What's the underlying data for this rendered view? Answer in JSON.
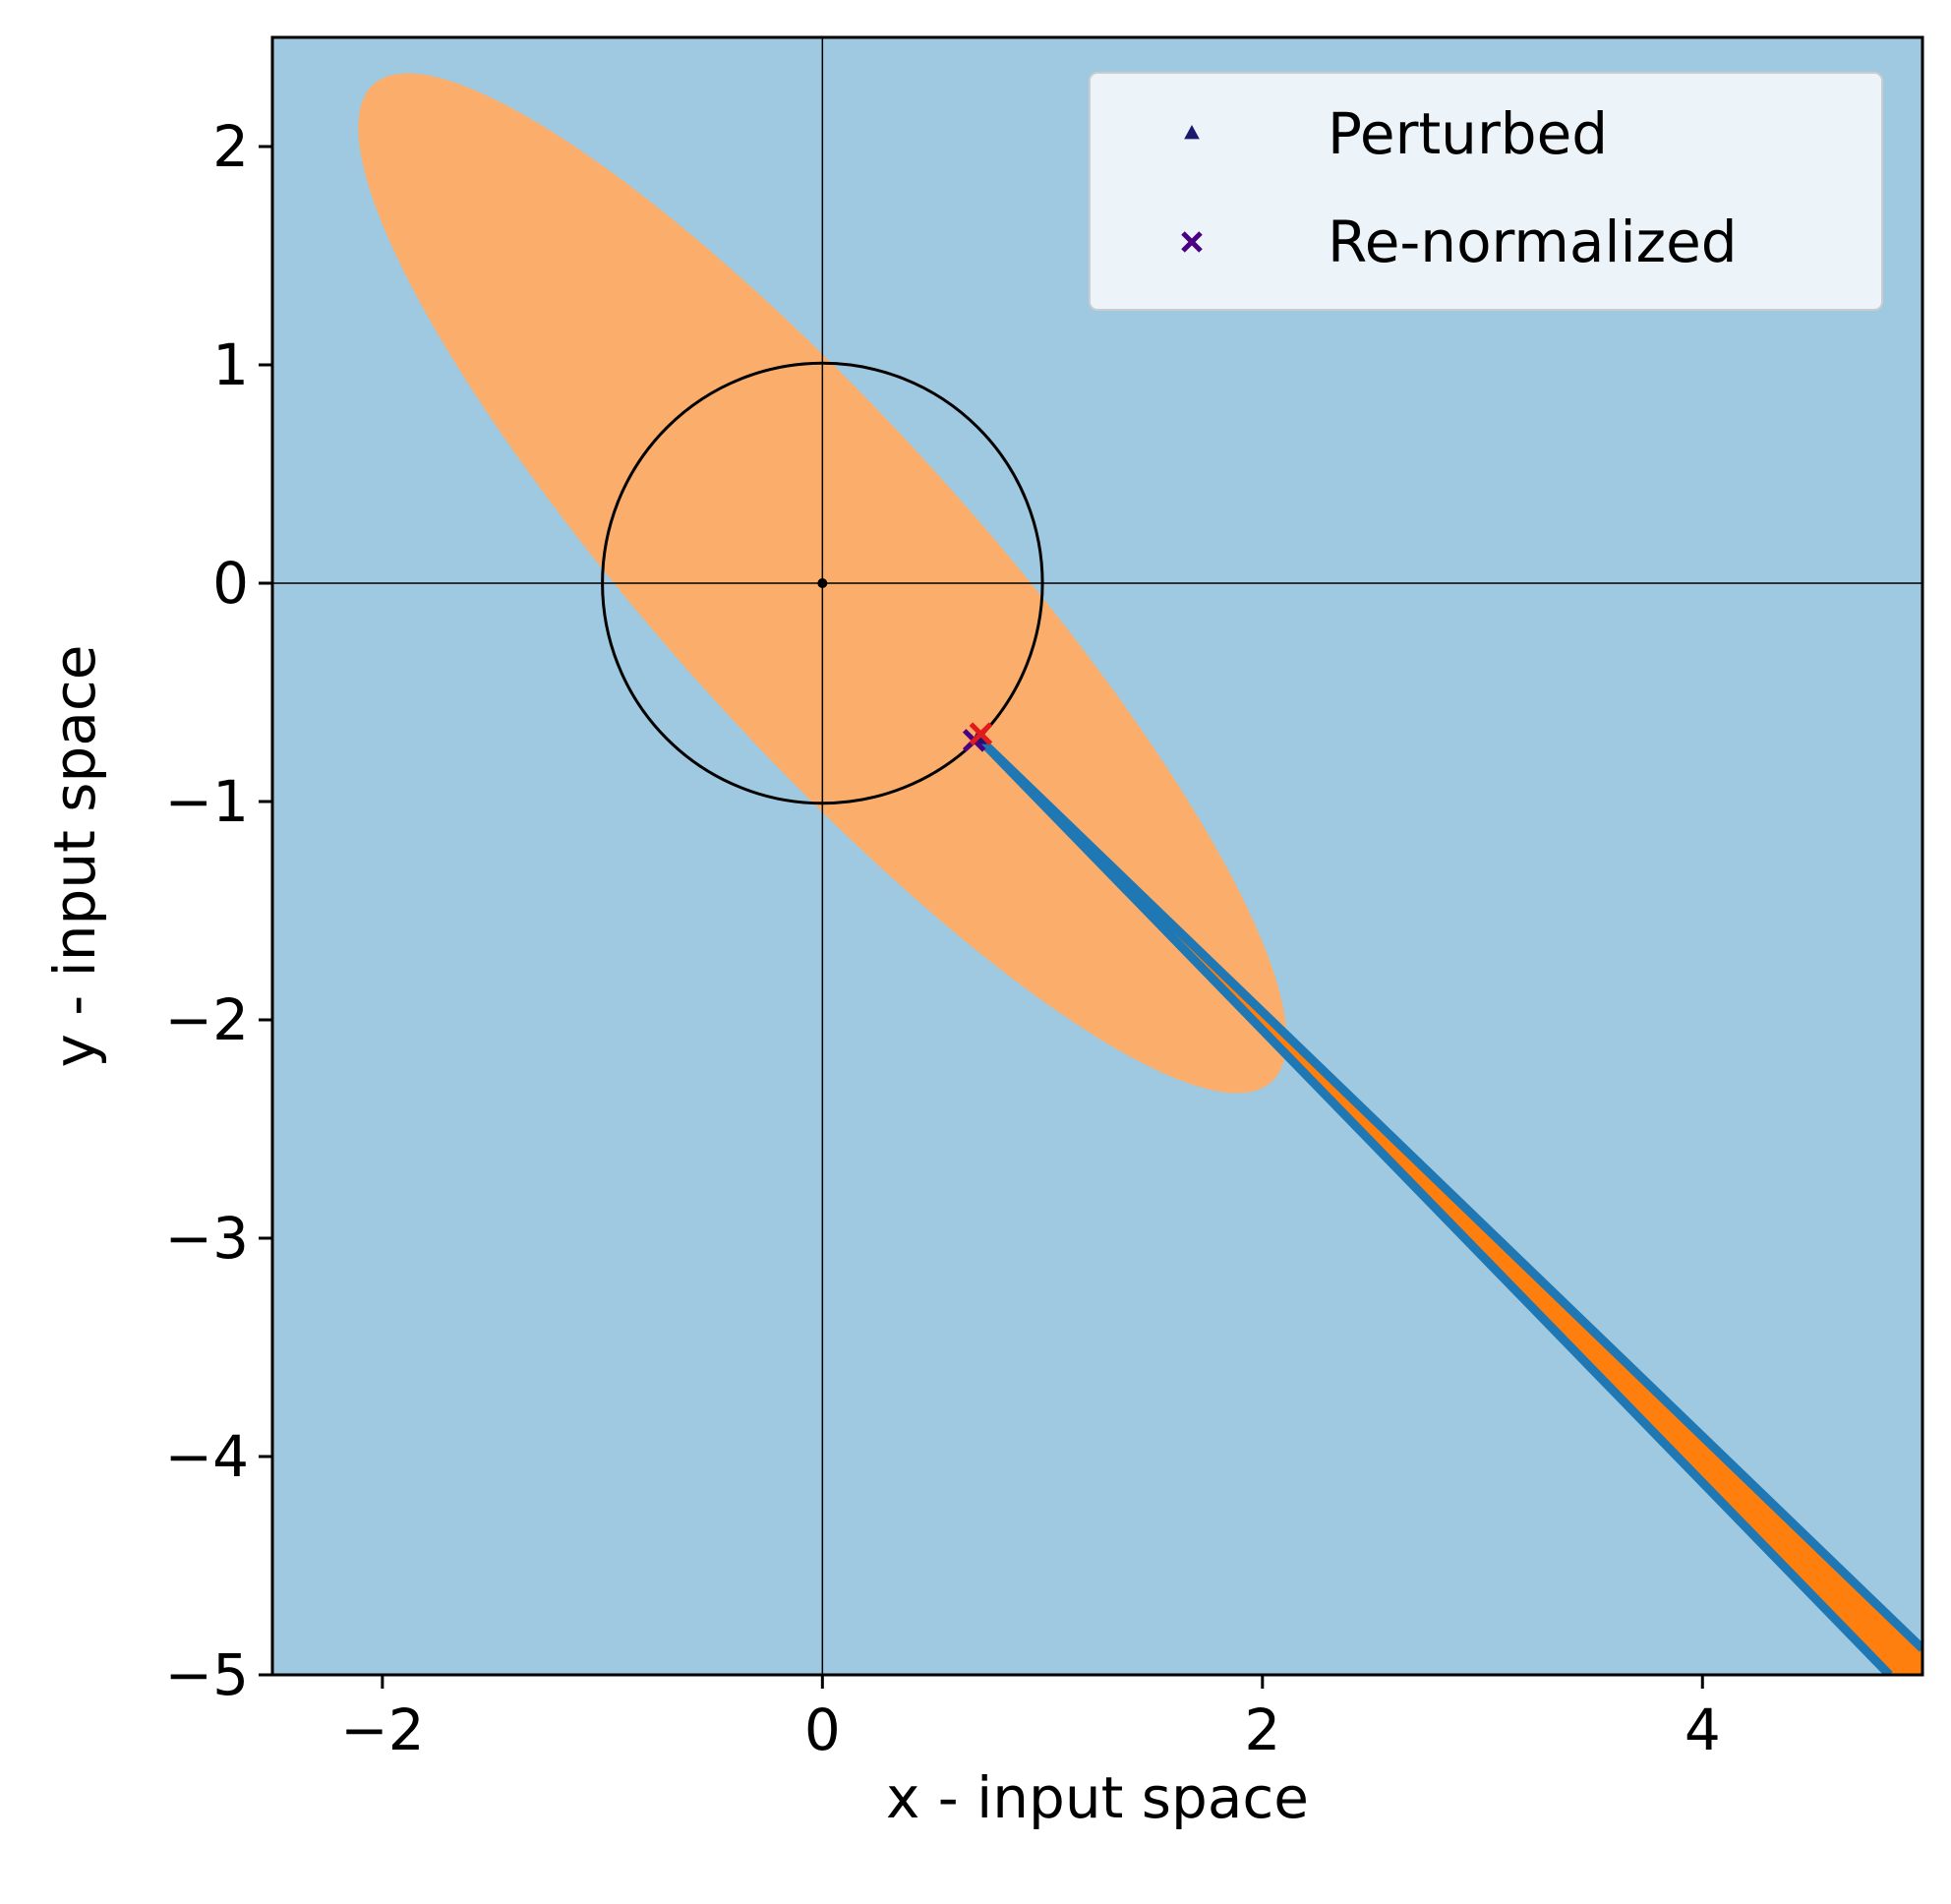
{
  "chart_data": {
    "type": "scatter",
    "title": "",
    "xlabel": "x - input space",
    "ylabel": "y - input space",
    "xlim": [
      -2.5,
      5
    ],
    "ylim": [
      -5,
      2.5
    ],
    "xticks": [
      {
        "value": -2,
        "label": "−2"
      },
      {
        "value": 0,
        "label": "0"
      },
      {
        "value": 2,
        "label": "2"
      },
      {
        "value": 4,
        "label": "4"
      }
    ],
    "yticks": [
      {
        "value": 2,
        "label": "2"
      },
      {
        "value": 1,
        "label": "1"
      },
      {
        "value": 0,
        "label": "0"
      },
      {
        "value": -1,
        "label": "−1"
      },
      {
        "value": -2,
        "label": "−2"
      },
      {
        "value": -3,
        "label": "−3"
      },
      {
        "value": -4,
        "label": "−4"
      },
      {
        "value": -5,
        "label": "−5"
      }
    ],
    "grid": false,
    "legend_position": "top-right",
    "background_region_color": "#9ec9e0",
    "ellipse_region": {
      "color": "#fbae6b",
      "center": [
        0,
        0
      ],
      "semi_major": 3.05,
      "semi_minor": 0.72,
      "angle_deg": -48
    },
    "unit_circle": {
      "center": [
        0,
        0
      ],
      "radius": 1,
      "color": "#000000"
    },
    "origin_point": [
      0,
      0
    ],
    "reference_lines": [
      {
        "orientation": "horizontal",
        "value": 0
      },
      {
        "orientation": "vertical",
        "value": 0
      }
    ],
    "wedge": {
      "apex": [
        0.71,
        -0.71
      ],
      "fill_color": "#ff7f0e",
      "edge_color": "#1f77b4",
      "edges": [
        {
          "from": [
            0.71,
            -0.71
          ],
          "to": [
            5.0,
            -4.88
          ]
        },
        {
          "from": [
            0.71,
            -0.71
          ],
          "to": [
            4.85,
            -5.0
          ]
        }
      ]
    },
    "series": [
      {
        "name": "Perturbed",
        "marker": "triangle",
        "color": "#191970",
        "points": [
          {
            "x": 0.71,
            "y": -0.71
          }
        ]
      },
      {
        "name": "Re-normalized",
        "marker": "x",
        "color": "#4b0082",
        "points": [
          {
            "x": 0.69,
            "y": -0.72
          }
        ]
      }
    ],
    "extra_markers": [
      {
        "marker": "x",
        "color": "#e31a1c",
        "x": 0.72,
        "y": -0.69
      }
    ]
  }
}
